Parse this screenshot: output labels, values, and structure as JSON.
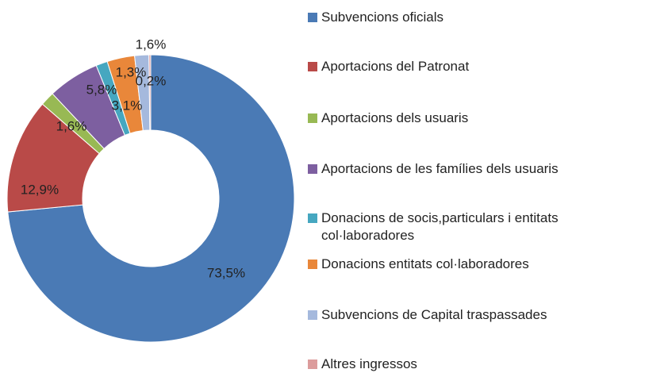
{
  "chart_data": {
    "type": "donut",
    "categories": [
      "Subvencions oficials",
      "Aportacions del Patronat",
      "Aportacions dels usuaris",
      "Aportacions de les famílies dels usuaris",
      "Donacions de socis,particulars i entitats col·laboradores",
      "Donacions entitats col·laboradores",
      "Subvencions de Capital  traspassades",
      "Altres ingressos"
    ],
    "values": [
      73.5,
      12.9,
      1.6,
      5.8,
      1.3,
      3.1,
      1.6,
      0.2
    ],
    "value_labels": [
      "73,5%",
      "12,9%",
      "1,6%",
      "5,8%",
      "1,3%",
      "3,1%",
      "1,6%",
      "0,2%"
    ],
    "colors": [
      "#4a7ab5",
      "#b94a48",
      "#98b954",
      "#7d5fa0",
      "#46a7c0",
      "#e9873a",
      "#a5b9dd",
      "#dc9c9c"
    ],
    "legend": "right"
  }
}
